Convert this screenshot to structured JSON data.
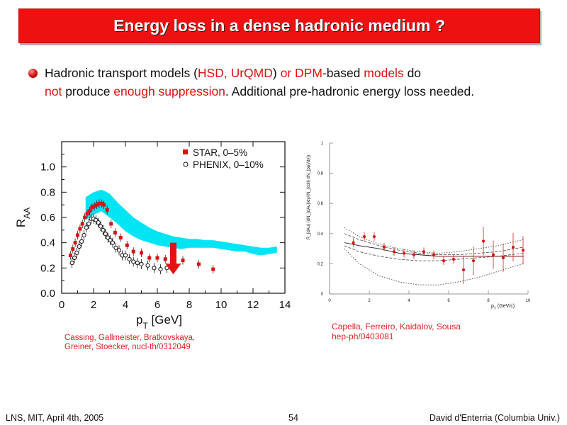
{
  "slide": {
    "title": "Energy loss in a dense hadronic medium ?",
    "bullet": {
      "p1": "Hadronic transport models (",
      "hsd": "HSD, UrQMD",
      "p2": ") ",
      "or_dpm": "or DPM",
      "p3": "-based ",
      "models": "models",
      "p4": " do",
      "not": "not",
      "p5": " produce ",
      "suppr": "enough suppression",
      "p6": ". Additional pre-hadronic energy loss needed."
    },
    "citation_left": {
      "line1": "Cassing, Gallmeister, Bratkovskaya,",
      "line2": "Greiner, Stoecker, nucl-th/0312049"
    },
    "citation_right": {
      "line1": "Capella, Ferreiro, Kaidalov, Sousa",
      "line2": "hep-ph/0403081"
    },
    "footer": {
      "left": "LNS, MIT, April 4th, 2005",
      "page": "54",
      "right": "David d'Enterria (Columbia Univ.)"
    }
  },
  "chart_data": [
    {
      "type": "scatter",
      "xlabel": "p",
      "xlabel_sub": "T",
      "xlabel_unit": " [GeV]",
      "ylabel": "R",
      "ylabel_sub": "AA",
      "xlim": [
        0,
        14
      ],
      "ylim": [
        0,
        1.2
      ],
      "x_ticks": [
        0,
        2,
        4,
        6,
        8,
        10,
        12,
        14
      ],
      "y_ticks": [
        0.0,
        0.2,
        0.4,
        0.6,
        0.8,
        1.0
      ],
      "legend_position": "top-right",
      "band_color": "#00e4f4",
      "series": [
        {
          "name": "STAR, 0–5%",
          "marker": "filled-square",
          "color": "#dd1111",
          "x": [
            0.55,
            0.7,
            0.85,
            1.0,
            1.15,
            1.3,
            1.45,
            1.6,
            1.75,
            1.9,
            2.05,
            2.2,
            2.35,
            2.5,
            2.65,
            2.85,
            3.1,
            3.35,
            3.7,
            4.1,
            4.5,
            5.0,
            5.5,
            6.0,
            6.5,
            7.0,
            7.6,
            8.6,
            9.5
          ],
          "y": [
            0.3,
            0.35,
            0.4,
            0.46,
            0.51,
            0.55,
            0.6,
            0.63,
            0.65,
            0.68,
            0.69,
            0.7,
            0.71,
            0.71,
            0.7,
            0.66,
            0.55,
            0.48,
            0.44,
            0.38,
            0.33,
            0.32,
            0.28,
            0.28,
            0.27,
            0.24,
            0.26,
            0.23,
            0.19
          ]
        },
        {
          "name": "PHENIX, 0–10%",
          "marker": "open-circle",
          "color": "#111111",
          "x": [
            0.65,
            0.8,
            0.95,
            1.1,
            1.25,
            1.4,
            1.55,
            1.7,
            1.85,
            2.0,
            2.15,
            2.3,
            2.45,
            2.6,
            2.75,
            2.9,
            3.05,
            3.2,
            3.4,
            3.6,
            3.8,
            4.0,
            4.25,
            4.5,
            4.75,
            5.0,
            5.4,
            5.8,
            6.2,
            6.6,
            7.0
          ],
          "y": [
            0.24,
            0.28,
            0.32,
            0.37,
            0.41,
            0.46,
            0.52,
            0.55,
            0.59,
            0.59,
            0.58,
            0.56,
            0.53,
            0.5,
            0.47,
            0.44,
            0.42,
            0.4,
            0.36,
            0.34,
            0.3,
            0.3,
            0.27,
            0.25,
            0.24,
            0.23,
            0.22,
            0.2,
            0.19,
            0.2,
            0.2
          ]
        }
      ],
      "band": {
        "x": [
          1.5,
          2.0,
          2.5,
          3.0,
          3.5,
          4.0,
          4.5,
          5.0,
          5.5,
          6.0,
          6.5,
          7.0,
          7.5,
          8.0,
          8.5,
          9.0,
          9.5,
          10.0,
          10.5,
          11.0,
          11.5,
          12.0,
          12.5,
          13.0,
          13.5
        ],
        "lo": [
          0.58,
          0.62,
          0.65,
          0.6,
          0.55,
          0.49,
          0.45,
          0.42,
          0.4,
          0.38,
          0.37,
          0.36,
          0.35,
          0.36,
          0.36,
          0.36,
          0.36,
          0.35,
          0.34,
          0.33,
          0.33,
          0.31,
          0.3,
          0.31,
          0.32
        ],
        "hi": [
          0.76,
          0.8,
          0.82,
          0.79,
          0.72,
          0.66,
          0.6,
          0.56,
          0.52,
          0.49,
          0.47,
          0.45,
          0.44,
          0.43,
          0.43,
          0.42,
          0.42,
          0.41,
          0.4,
          0.39,
          0.38,
          0.37,
          0.36,
          0.36,
          0.37
        ]
      },
      "arrow_at": {
        "x": 7.0,
        "y_top": 0.4,
        "y_tip": 0.15
      }
    },
    {
      "type": "scatter",
      "xlabel": "p",
      "xlabel_sub": "T",
      "xlabel_unit": " (GeV/c)",
      "ylabel": "R_{dAu} (dN_{dAu}/dy/(N_{coll} dN_{pp}/dy))",
      "xlim": [
        0,
        10
      ],
      "ylim": [
        0,
        1
      ],
      "x_ticks": [
        0,
        2,
        4,
        6,
        8,
        10
      ],
      "y_ticks": [
        0,
        0.2,
        0.4,
        0.6,
        0.8,
        1
      ],
      "series": [
        {
          "name": "",
          "marker": "filled-circle",
          "color": "#dd1111",
          "x": [
            1.2,
            1.75,
            2.25,
            2.75,
            3.25,
            3.75,
            4.25,
            4.75,
            5.25,
            5.75,
            6.25,
            6.75,
            7.25,
            7.75,
            8.25,
            8.75,
            9.25,
            9.75
          ],
          "y": [
            0.34,
            0.38,
            0.38,
            0.31,
            0.28,
            0.27,
            0.26,
            0.28,
            0.26,
            0.22,
            0.23,
            0.16,
            0.22,
            0.35,
            0.26,
            0.24,
            0.31,
            0.29
          ]
        }
      ],
      "curves": {
        "x": [
          0.75,
          1.5,
          2.5,
          3.5,
          4.5,
          5.5,
          6.5,
          7.5,
          8.5,
          9.75
        ],
        "solid": [
          0.34,
          0.32,
          0.3,
          0.27,
          0.26,
          0.25,
          0.25,
          0.25,
          0.25,
          0.25
        ],
        "dash_upper": [
          0.4,
          0.36,
          0.32,
          0.29,
          0.27,
          0.26,
          0.26,
          0.27,
          0.28,
          0.31
        ],
        "dash_lower": [
          0.32,
          0.28,
          0.25,
          0.23,
          0.22,
          0.22,
          0.23,
          0.24,
          0.25,
          0.27
        ],
        "dot_upper": [
          0.44,
          0.38,
          0.33,
          0.3,
          0.28,
          0.27,
          0.28,
          0.3,
          0.32,
          0.36
        ],
        "dot_lower": [
          0.3,
          0.2,
          0.12,
          0.08,
          0.06,
          0.06,
          0.08,
          0.11,
          0.15,
          0.2
        ]
      }
    }
  ]
}
